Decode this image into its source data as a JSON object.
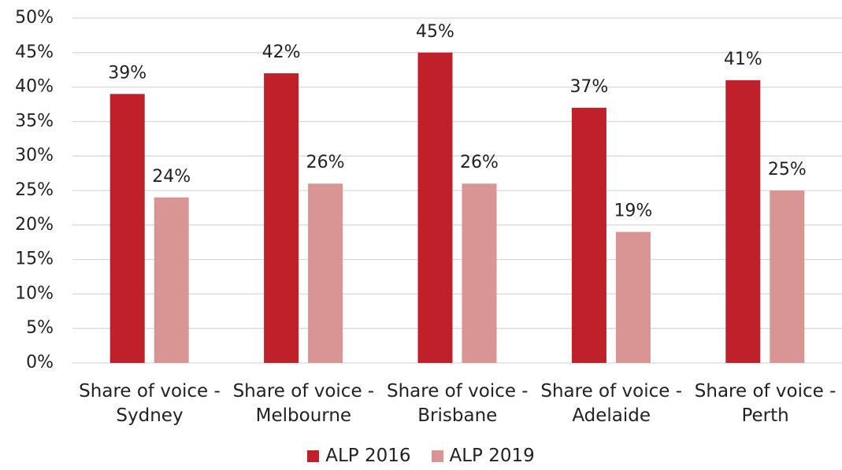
{
  "chart_data": {
    "type": "bar",
    "categories": [
      "Share of voice - Sydney",
      "Share of voice - Melbourne",
      "Share of voice - Brisbane",
      "Share of voice - Adelaide",
      "Share of voice - Perth"
    ],
    "series": [
      {
        "name": "ALP 2016",
        "color": "#c0202a",
        "values": [
          39,
          42,
          45,
          37,
          41
        ],
        "value_labels": [
          "39%",
          "42%",
          "45%",
          "37%",
          "41%"
        ]
      },
      {
        "name": "ALP 2019",
        "color": "#d99594",
        "values": [
          24,
          26,
          26,
          19,
          25
        ],
        "value_labels": [
          "24%",
          "26%",
          "26%",
          "19%",
          "25%"
        ]
      }
    ],
    "ylim": [
      0,
      50
    ],
    "yticks": [
      {
        "value": 0,
        "label": "0%"
      },
      {
        "value": 5,
        "label": "5%"
      },
      {
        "value": 10,
        "label": "10%"
      },
      {
        "value": 15,
        "label": "15%"
      },
      {
        "value": 20,
        "label": "20%"
      },
      {
        "value": 25,
        "label": "25%"
      },
      {
        "value": 30,
        "label": "30%"
      },
      {
        "value": 35,
        "label": "35%"
      },
      {
        "value": 40,
        "label": "40%"
      },
      {
        "value": 45,
        "label": "45%"
      },
      {
        "value": 50,
        "label": "50%"
      }
    ],
    "grid": true,
    "legend": "bottom"
  }
}
